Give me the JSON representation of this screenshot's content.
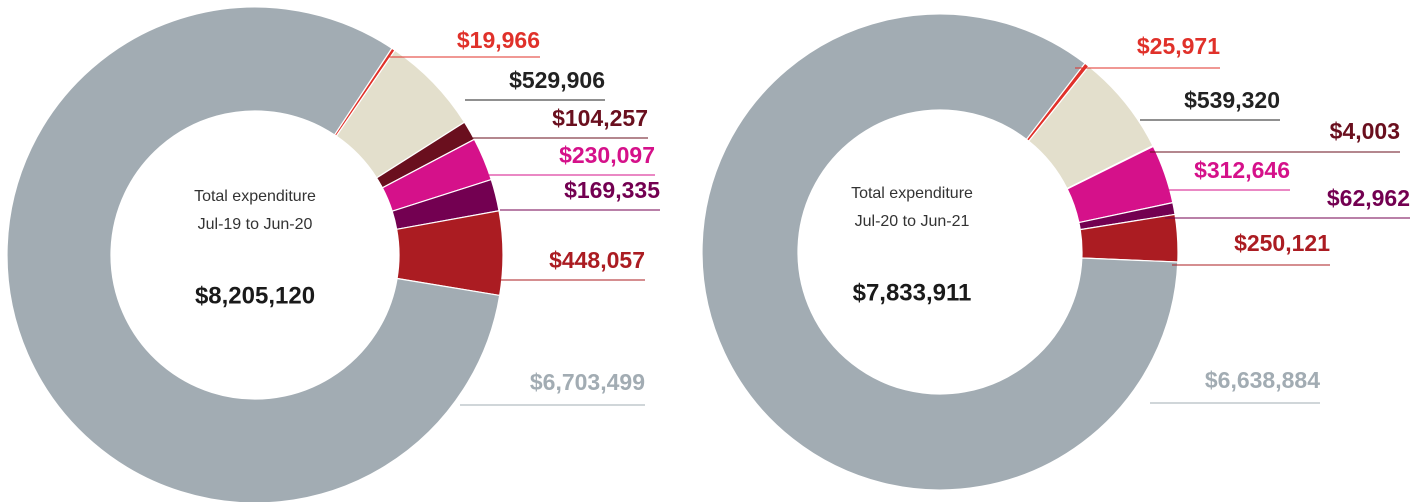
{
  "chart_data": [
    {
      "type": "pie",
      "center_text": [
        "Total expenditure",
        "Jul-19 to Jun-20"
      ],
      "center_value": "$8,205,120",
      "values": [
        19966,
        529906,
        104257,
        230097,
        169335,
        448057,
        6703499
      ],
      "value_labels": [
        "$19,966",
        "$529,906",
        "$104,257",
        "$230,097",
        "$169,335",
        "$448,057",
        "$6,703,499"
      ],
      "colors": [
        "#e0312a",
        "#e3dfcc",
        "#6a0f1e",
        "#d5118a",
        "#730051",
        "#ab1c22",
        "#a2acb3"
      ],
      "label_colors": [
        "#e0312a",
        "#222222",
        "#6a0f1e",
        "#d5118a",
        "#730051",
        "#ab1c22",
        "#a2acb3"
      ]
    },
    {
      "type": "pie",
      "center_text": [
        "Total expenditure",
        "Jul-20 to Jun-21"
      ],
      "center_value": "$7,833,911",
      "values": [
        25971,
        539320,
        4003,
        312646,
        62962,
        250121,
        6638884
      ],
      "value_labels": [
        "$25,971",
        "$539,320",
        "$4,003",
        "$312,646",
        "$62,962",
        "$250,121",
        "$6,638,884"
      ],
      "colors": [
        "#e0312a",
        "#e3dfcc",
        "#6a0f1e",
        "#d5118a",
        "#730051",
        "#ab1c22",
        "#a2acb3"
      ],
      "label_colors": [
        "#e0312a",
        "#222222",
        "#6a0f1e",
        "#d5118a",
        "#730051",
        "#ab1c22",
        "#a2acb3"
      ]
    }
  ]
}
